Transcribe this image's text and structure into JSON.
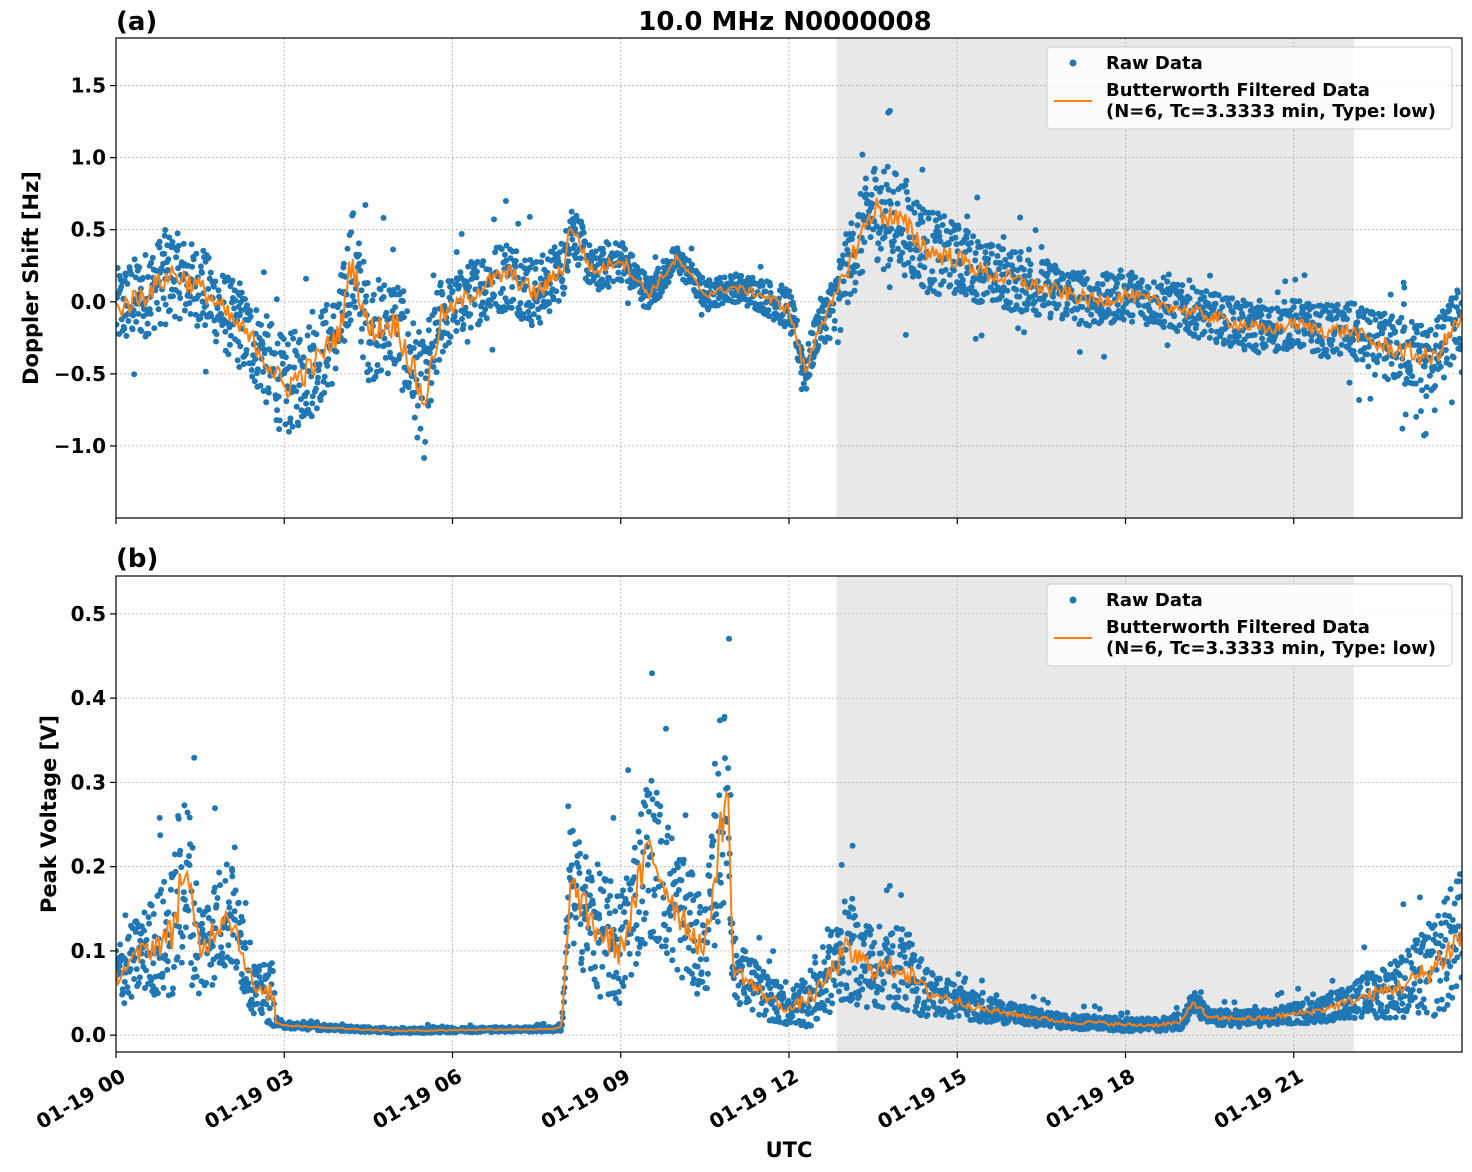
{
  "chart_data": {
    "type": "scatter",
    "title": "10.0 MHz N0000008",
    "xlabel": "UTC",
    "x_ticks": [
      "01-19 00",
      "01-19 03",
      "01-19 06",
      "01-19 09",
      "01-19 12",
      "01-19 15",
      "01-19 18",
      "01-19 21"
    ],
    "x_range_hours": [
      0,
      24
    ],
    "shaded_region_hours": [
      12.85,
      22.07
    ],
    "grid": true,
    "legend_placement": "upper-right",
    "legend": {
      "raw": "Raw Data",
      "filt1": "Butterworth Filtered Data",
      "filt2": "(N=6, Tc=3.3333 min, Type: low)"
    },
    "colors": {
      "raw": "#1f77b4",
      "filtered": "#ff7f0e",
      "shade": "#e8e8e8"
    },
    "panels": [
      {
        "id": "a",
        "label": "(a)",
        "ylabel": "Doppler Shift [Hz]",
        "ylim": [
          -1.5,
          1.83
        ],
        "y_ticks": [
          1.5,
          1.0,
          0.5,
          0.0,
          -0.5,
          -1.0
        ],
        "y_tick_labels": [
          "1.5",
          "1.0",
          "0.5",
          "0.0",
          "−0.5",
          "−1.0"
        ],
        "series": [
          {
            "name": "Butterworth Filtered Data",
            "x_hours": [
              0,
              0.5,
              1,
              1.5,
              2,
              2.5,
              3,
              3.5,
              4,
              4.2,
              4.5,
              5,
              5.5,
              5.8,
              6,
              6.5,
              7,
              7.5,
              8,
              8.1,
              8.5,
              9,
              9.5,
              10,
              10.5,
              11,
              11.5,
              12,
              12.3,
              12.5,
              12.8,
              13,
              13.5,
              14,
              14.5,
              15,
              15.5,
              16,
              16.5,
              17,
              17.5,
              18,
              18.5,
              19,
              19.5,
              20,
              20.5,
              21,
              21.5,
              22,
              22.5,
              23,
              23.5,
              24
            ],
            "y": [
              -0.05,
              0.05,
              0.2,
              0.1,
              -0.1,
              -0.3,
              -0.6,
              -0.45,
              -0.2,
              0.3,
              -0.2,
              -0.15,
              -0.7,
              -0.1,
              -0.05,
              0.1,
              0.2,
              0.05,
              0.25,
              0.55,
              0.2,
              0.3,
              0.05,
              0.3,
              0.05,
              0.1,
              0.05,
              -0.05,
              -0.5,
              -0.2,
              0.0,
              0.2,
              0.65,
              0.55,
              0.35,
              0.3,
              0.2,
              0.15,
              0.1,
              0.05,
              0.0,
              0.05,
              0.0,
              -0.05,
              -0.1,
              -0.15,
              -0.2,
              -0.15,
              -0.2,
              -0.2,
              -0.3,
              -0.35,
              -0.4,
              -0.1
            ]
          },
          {
            "name": "Raw Data",
            "spread": [
              0.28,
              0.3,
              0.3,
              0.28,
              0.28,
              0.3,
              0.35,
              0.35,
              0.3,
              0.4,
              0.35,
              0.35,
              0.4,
              0.3,
              0.22,
              0.25,
              0.25,
              0.25,
              0.2,
              0.2,
              0.15,
              0.15,
              0.12,
              0.1,
              0.1,
              0.1,
              0.12,
              0.15,
              0.15,
              0.15,
              0.2,
              0.25,
              0.35,
              0.35,
              0.3,
              0.25,
              0.22,
              0.22,
              0.2,
              0.2,
              0.18,
              0.18,
              0.17,
              0.17,
              0.17,
              0.17,
              0.17,
              0.17,
              0.18,
              0.2,
              0.22,
              0.25,
              0.25,
              0.25
            ]
          }
        ]
      },
      {
        "id": "b",
        "label": "(b)",
        "ylabel": "Peak Voltage [V]",
        "ylim": [
          -0.02,
          0.545
        ],
        "y_ticks": [
          0.5,
          0.4,
          0.3,
          0.2,
          0.1,
          0.0
        ],
        "y_tick_labels": [
          "0.5",
          "0.4",
          "0.3",
          "0.2",
          "0.1",
          "0.0"
        ],
        "series": [
          {
            "name": "Butterworth Filtered Data",
            "x_hours": [
              0,
              0.5,
              1,
              1.2,
              1.5,
              2,
              2.5,
              2.8,
              2.85,
              3,
              3.5,
              4,
              5,
              6,
              7,
              7.8,
              7.95,
              8.1,
              8.5,
              9,
              9.5,
              10,
              10.5,
              10.9,
              11,
              11.5,
              12,
              12.5,
              13,
              13.5,
              14,
              14.5,
              15,
              15.5,
              16,
              16.5,
              17,
              17.5,
              18,
              18.5,
              19,
              19.2,
              19.5,
              20,
              20.5,
              21,
              21.5,
              22,
              22.5,
              23,
              23.5,
              24
            ],
            "y": [
              0.07,
              0.1,
              0.12,
              0.2,
              0.1,
              0.15,
              0.05,
              0.05,
              0.015,
              0.012,
              0.01,
              0.008,
              0.005,
              0.006,
              0.007,
              0.007,
              0.01,
              0.18,
              0.13,
              0.1,
              0.22,
              0.15,
              0.1,
              0.3,
              0.08,
              0.05,
              0.03,
              0.05,
              0.1,
              0.08,
              0.08,
              0.05,
              0.04,
              0.03,
              0.025,
              0.02,
              0.015,
              0.015,
              0.012,
              0.012,
              0.015,
              0.04,
              0.02,
              0.02,
              0.02,
              0.025,
              0.03,
              0.04,
              0.05,
              0.06,
              0.08,
              0.12
            ]
          },
          {
            "name": "Raw Data",
            "spread": [
              0.04,
              0.05,
              0.08,
              0.12,
              0.06,
              0.07,
              0.03,
              0.04,
              0.004,
              0.004,
              0.004,
              0.003,
              0.003,
              0.003,
              0.003,
              0.003,
              0.005,
              0.07,
              0.08,
              0.07,
              0.1,
              0.08,
              0.06,
              0.12,
              0.04,
              0.03,
              0.02,
              0.04,
              0.06,
              0.05,
              0.05,
              0.03,
              0.02,
              0.015,
              0.012,
              0.01,
              0.008,
              0.008,
              0.008,
              0.008,
              0.008,
              0.015,
              0.01,
              0.01,
              0.01,
              0.012,
              0.015,
              0.02,
              0.03,
              0.04,
              0.06,
              0.08
            ]
          }
        ]
      }
    ]
  }
}
